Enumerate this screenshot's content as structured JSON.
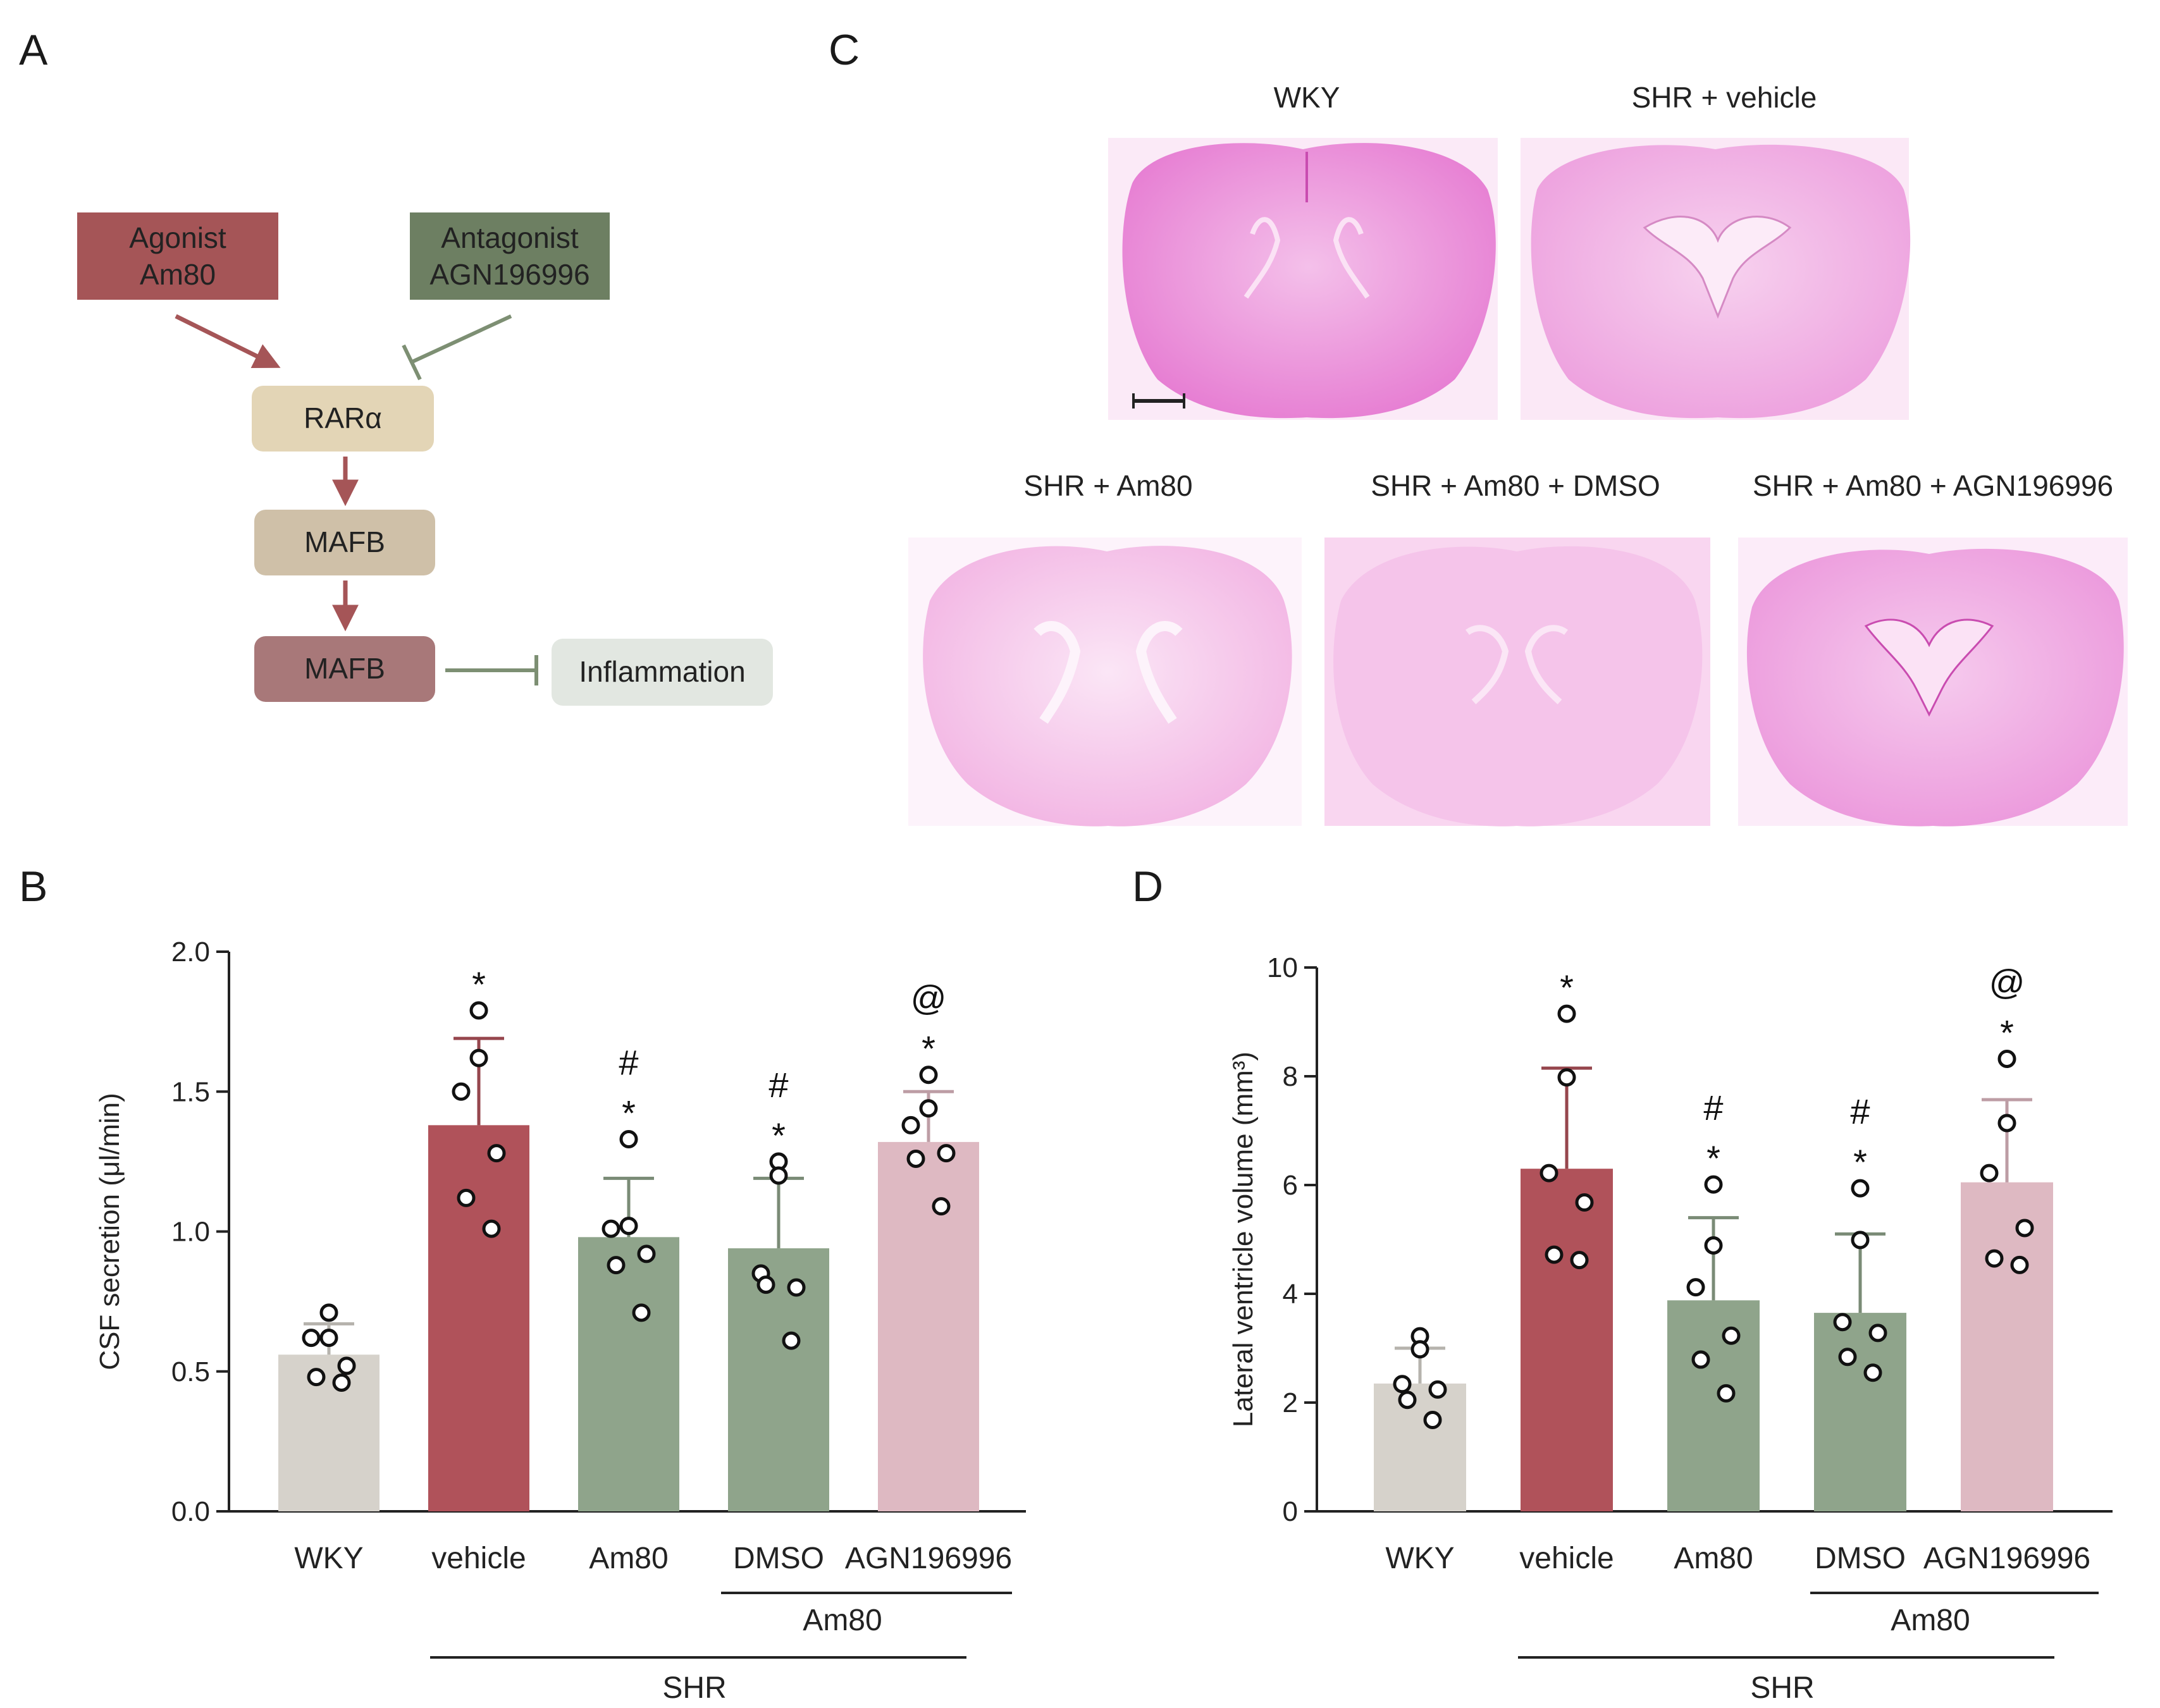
{
  "panel_letters": {
    "a": "A",
    "b": "B",
    "c": "C",
    "d": "D"
  },
  "diagram": {
    "agonist": {
      "line1": "Agonist",
      "line2": "Am80",
      "color": "#a55557"
    },
    "antagonist": {
      "line1": "Antagonist",
      "line2": "AGN196996",
      "color": "#6d7f62"
    },
    "rara": {
      "label": "RARα",
      "color": "#e3d5b6"
    },
    "mafb1": {
      "label": "MAFB",
      "color": "#cfc0a8"
    },
    "mafb2": {
      "label": "MAFB",
      "color": "#a87879"
    },
    "inflammation": {
      "label": "Inflammation",
      "color": "#e2e7e1"
    }
  },
  "histology": {
    "labels": {
      "wky": "WKY",
      "shr_vehicle": "SHR + vehicle",
      "shr_am80": "SHR + Am80",
      "shr_am80_dmso": "SHR + Am80 + DMSO",
      "shr_am80_agn": "SHR + Am80 + AGN196996"
    },
    "stain_color": "#e67cd2"
  },
  "group_labels": {
    "am80": "Am80",
    "shr": "SHR"
  },
  "chart_data": [
    {
      "type": "bar",
      "panel": "B",
      "ylabel": "CSF secretion (μl/min)",
      "ylim": [
        0,
        2.0
      ],
      "yticks": [
        0.0,
        0.5,
        1.0,
        1.5,
        2.0
      ],
      "ytick_labels": [
        "0.0",
        "0.5",
        "1.0",
        "1.5",
        "2.0"
      ],
      "categories": [
        "WKY",
        "vehicle",
        "Am80",
        "DMSO",
        "AGN196996"
      ],
      "values": [
        0.56,
        1.38,
        0.98,
        0.94,
        1.32
      ],
      "errors": [
        0.11,
        0.31,
        0.21,
        0.25,
        0.18
      ],
      "colors": [
        "#d6d2cb",
        "#b0525a",
        "#8fa48b",
        "#8fa48b",
        "#deb9c2"
      ],
      "points": [
        [
          0.71,
          0.62,
          0.62,
          0.52,
          0.48,
          0.46
        ],
        [
          1.79,
          1.62,
          1.5,
          1.28,
          1.12,
          1.01
        ],
        [
          1.33,
          1.02,
          1.01,
          0.92,
          0.88,
          0.71
        ],
        [
          1.25,
          1.2,
          0.85,
          0.8,
          0.81,
          0.61
        ],
        [
          1.56,
          1.44,
          1.38,
          1.28,
          1.26,
          1.09
        ]
      ],
      "annotations": [
        [],
        [
          "*"
        ],
        [
          "*",
          "#"
        ],
        [
          "*",
          "#"
        ],
        [
          "*",
          "@"
        ]
      ]
    },
    {
      "type": "bar",
      "panel": "D",
      "ylabel": "Lateral ventricle volume (mm³)",
      "ylim": [
        0,
        10
      ],
      "yticks": [
        0,
        2,
        4,
        6,
        8,
        10
      ],
      "ytick_labels": [
        "0",
        "2",
        "4",
        "6",
        "8",
        "10"
      ],
      "categories": [
        "WKY",
        "vehicle",
        "Am80",
        "DMSO",
        "AGN196996"
      ],
      "values": [
        2.35,
        6.3,
        3.88,
        3.65,
        6.05
      ],
      "errors": [
        0.65,
        1.85,
        1.52,
        1.45,
        1.52
      ],
      "colors": [
        "#d6d2cb",
        "#b0525a",
        "#8fa48b",
        "#8fa48b",
        "#deb9c2"
      ],
      "points": [
        [
          3.22,
          2.98,
          2.34,
          2.24,
          2.05,
          1.68
        ],
        [
          9.15,
          7.98,
          6.22,
          5.68,
          4.72,
          4.62
        ],
        [
          6.01,
          4.89,
          4.12,
          3.23,
          2.79,
          2.17
        ],
        [
          5.94,
          4.99,
          3.48,
          3.28,
          2.84,
          2.55
        ],
        [
          8.32,
          7.14,
          6.22,
          5.21,
          4.65,
          4.53
        ]
      ],
      "annotations": [
        [],
        [
          "*"
        ],
        [
          "*",
          "#"
        ],
        [
          "*",
          "#"
        ],
        [
          "*",
          "@"
        ]
      ]
    }
  ]
}
